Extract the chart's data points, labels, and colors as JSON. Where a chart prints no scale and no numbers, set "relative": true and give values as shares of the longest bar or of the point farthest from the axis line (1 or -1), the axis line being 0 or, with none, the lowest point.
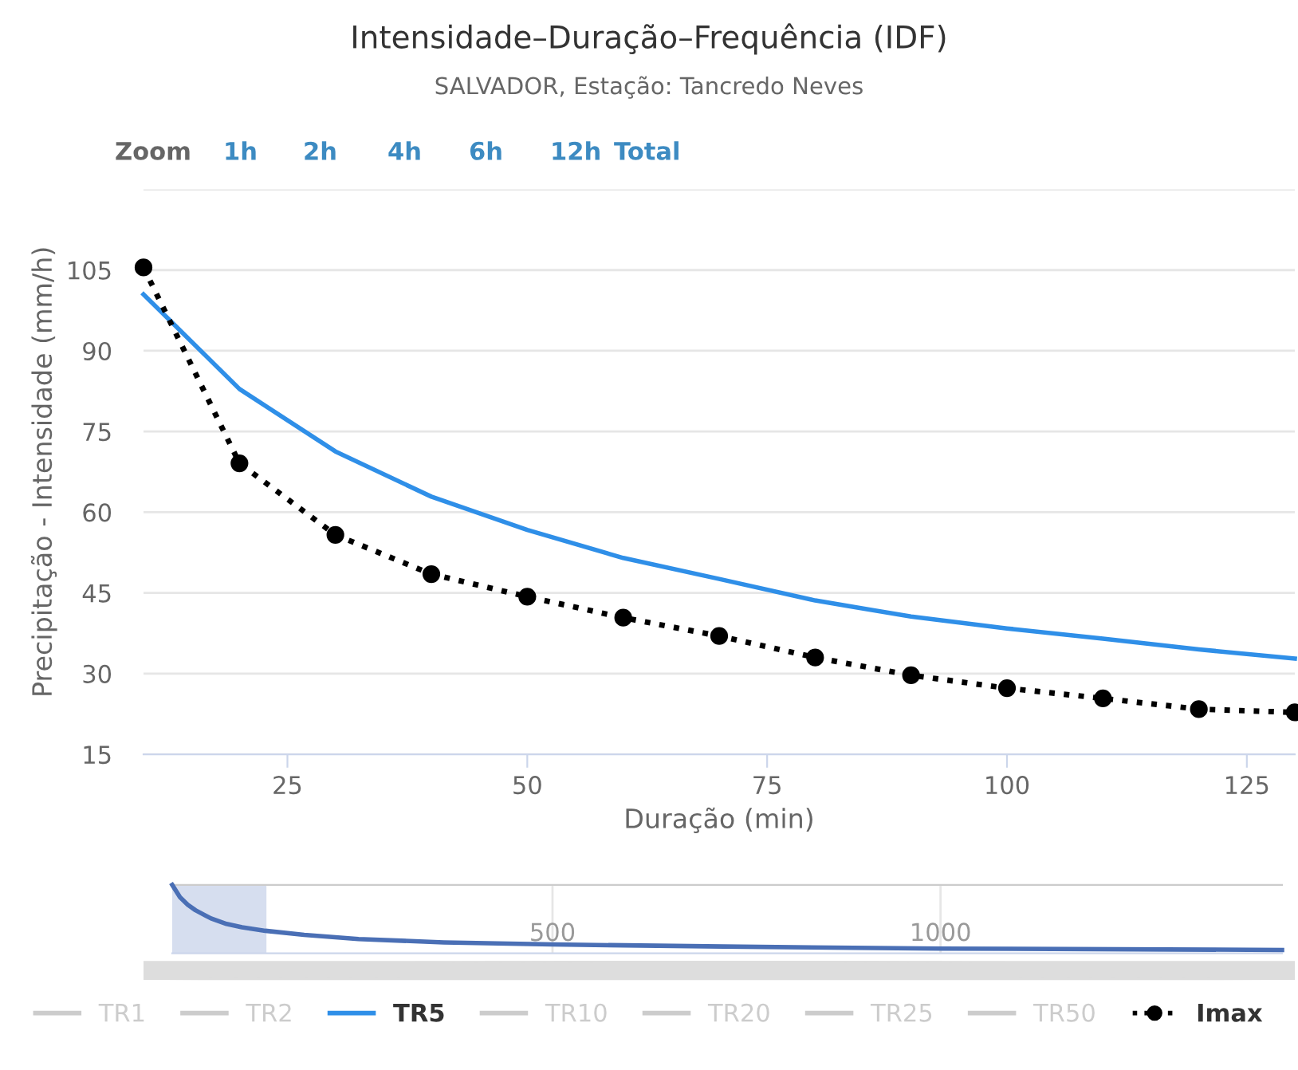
{
  "chart_data": [
    {
      "type": "line",
      "title": "Intensidade–Duração–Frequência (IDF)",
      "subtitle": "SALVADOR, Estação: Tancredo Neves",
      "xlabel": "Duração (min)",
      "ylabel": "Precipitação - Intensidade (mm/h)",
      "annotations": [
        "Zoom",
        "1h",
        "2h",
        "4h",
        "6h",
        "12h",
        "Total"
      ],
      "x": [
        10,
        20,
        30,
        40,
        50,
        60,
        70,
        80,
        90,
        100,
        110,
        120,
        130
      ],
      "series": [
        {
          "name": "TR1",
          "color": "#cccccc",
          "values": [
            null,
            null,
            null,
            null,
            null,
            null,
            null,
            null,
            null,
            null,
            null,
            null,
            null
          ]
        },
        {
          "name": "TR2",
          "color": "#cccccc",
          "values": [
            null,
            null,
            null,
            null,
            null,
            null,
            null,
            null,
            null,
            null,
            null,
            null,
            null
          ]
        },
        {
          "name": "TR5",
          "color": "#2f8fe8",
          "line_style": "solid",
          "marker": "none",
          "values": [
            100.5,
            82.9,
            71.3,
            62.9,
            56.7,
            51.5,
            47.6,
            43.6,
            40.6,
            38.4,
            36.5,
            34.5,
            32.8
          ]
        },
        {
          "name": "TR10",
          "color": "#cccccc",
          "values": [
            null,
            null,
            null,
            null,
            null,
            null,
            null,
            null,
            null,
            null,
            null,
            null,
            null
          ]
        },
        {
          "name": "TR20",
          "color": "#cccccc",
          "values": [
            null,
            null,
            null,
            null,
            null,
            null,
            null,
            null,
            null,
            null,
            null,
            null,
            null
          ]
        },
        {
          "name": "TR25",
          "color": "#cccccc",
          "values": [
            null,
            null,
            null,
            null,
            null,
            null,
            null,
            null,
            null,
            null,
            null,
            null,
            null
          ]
        },
        {
          "name": "TR50",
          "color": "#cccccc",
          "values": [
            null,
            null,
            null,
            null,
            null,
            null,
            null,
            null,
            null,
            null,
            null,
            null,
            null
          ]
        },
        {
          "name": "Imax",
          "color": "#000000",
          "line_style": "dotted",
          "marker": "circle",
          "values": [
            105.5,
            69.1,
            55.8,
            48.5,
            44.3,
            40.4,
            37.0,
            33.0,
            29.7,
            27.3,
            25.4,
            23.4,
            22.8
          ]
        }
      ],
      "xlim": [
        10,
        130
      ],
      "xticks": [
        25,
        50,
        75,
        100,
        125
      ],
      "ylim": [
        15,
        120
      ],
      "yticks": [
        15,
        30,
        45,
        60,
        75,
        90,
        105,
        {
          "value": 120,
          "label": null
        }
      ],
      "grid": "y",
      "legend": "bottom"
    },
    {
      "type": "line",
      "relative": true,
      "tick_labels": "x",
      "grid": "x",
      "x": [
        10,
        20,
        30,
        40,
        60,
        80,
        100,
        130,
        180,
        250,
        360,
        500,
        720,
        1000,
        1440
      ],
      "series": [
        {
          "color": "#4a6fb5",
          "values": [
            1.0,
            0.82,
            0.71,
            0.63,
            0.51,
            0.43,
            0.38,
            0.33,
            0.27,
            0.21,
            0.16,
            0.13,
            0.1,
            0.07,
            0.05
          ]
        }
      ],
      "xlim": [
        10,
        1440
      ],
      "xticks": [
        500,
        1000
      ],
      "bands": [
        {
          "axis": "x",
          "from": 10,
          "to": 130,
          "color": "#ccd6eb"
        }
      ]
    }
  ]
}
